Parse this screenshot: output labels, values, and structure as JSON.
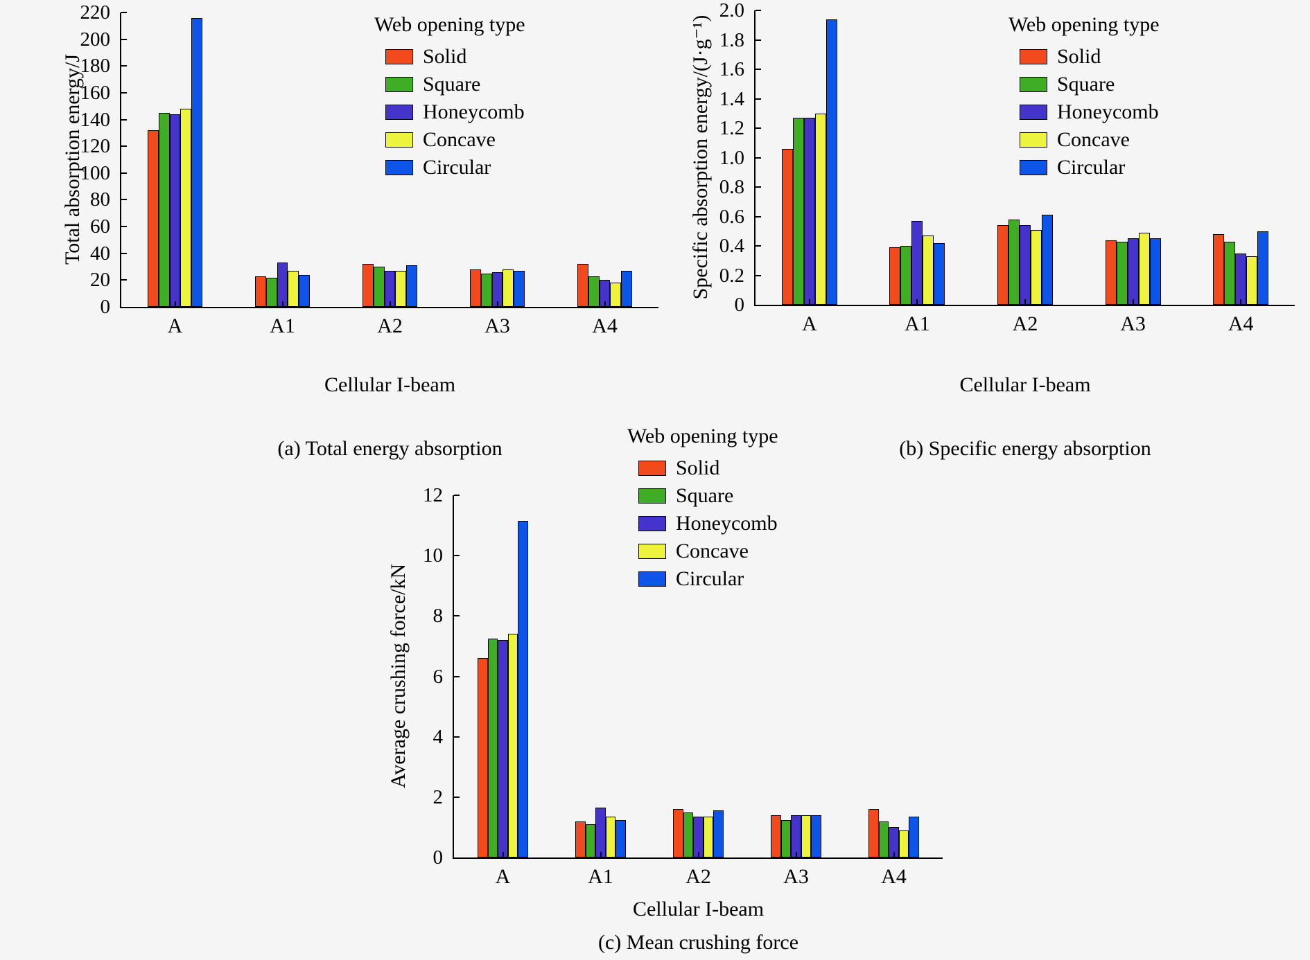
{
  "figure": {
    "background": "#f5f5f5"
  },
  "chart_data": [
    {
      "id": "chart-a",
      "type": "bar",
      "caption": "(a) Total energy absorption",
      "xlabel": "Cellular I-beam",
      "ylabel": "Total absorption energy/J",
      "legend_title": "Web opening type",
      "legend_position": "upper right",
      "grid": false,
      "categories": [
        "A",
        "A1",
        "A2",
        "A3",
        "A4"
      ],
      "ylim": [
        0,
        220
      ],
      "ytick_step": 20,
      "ytick_decimals": 0,
      "series": [
        {
          "name": "Solid",
          "color": "#f2491d",
          "values": [
            132,
            23,
            32,
            28,
            32
          ]
        },
        {
          "name": "Square",
          "color": "#3fae24",
          "values": [
            145,
            22,
            30,
            25,
            23
          ]
        },
        {
          "name": "Honeycomb",
          "color": "#4434cb",
          "values": [
            144,
            33,
            27,
            26,
            20
          ]
        },
        {
          "name": "Concave",
          "color": "#eef43d",
          "values": [
            148,
            27,
            27,
            28,
            18
          ]
        },
        {
          "name": "Circular",
          "color": "#0d55e8",
          "values": [
            216,
            24,
            31,
            27,
            27
          ]
        }
      ]
    },
    {
      "id": "chart-b",
      "type": "bar",
      "caption": "(b) Specific energy absorption",
      "xlabel": "Cellular I-beam",
      "ylabel": "Specific absorption energy/(J·g⁻¹)",
      "legend_title": "Web opening type",
      "legend_position": "upper right",
      "grid": false,
      "categories": [
        "A",
        "A1",
        "A2",
        "A3",
        "A4"
      ],
      "ylim": [
        0,
        2.0
      ],
      "ytick_step": 0.2,
      "ytick_decimals": 1,
      "series": [
        {
          "name": "Solid",
          "color": "#f2491d",
          "values": [
            1.06,
            0.39,
            0.54,
            0.44,
            0.48
          ]
        },
        {
          "name": "Square",
          "color": "#3fae24",
          "values": [
            1.27,
            0.4,
            0.58,
            0.43,
            0.43
          ]
        },
        {
          "name": "Honeycomb",
          "color": "#4434cb",
          "values": [
            1.27,
            0.57,
            0.54,
            0.45,
            0.35
          ]
        },
        {
          "name": "Concave",
          "color": "#eef43d",
          "values": [
            1.3,
            0.47,
            0.51,
            0.49,
            0.33
          ]
        },
        {
          "name": "Circular",
          "color": "#0d55e8",
          "values": [
            1.94,
            0.42,
            0.61,
            0.45,
            0.5
          ]
        }
      ]
    },
    {
      "id": "chart-c",
      "type": "bar",
      "caption": "(c) Mean crushing force",
      "xlabel": "Cellular I-beam",
      "ylabel": "Average crushing force/kN",
      "legend_title": "Web opening type",
      "legend_position": "upper right",
      "grid": false,
      "categories": [
        "A",
        "A1",
        "A2",
        "A3",
        "A4"
      ],
      "ylim": [
        0,
        12
      ],
      "ytick_step": 2,
      "ytick_decimals": 0,
      "series": [
        {
          "name": "Solid",
          "color": "#f2491d",
          "values": [
            6.6,
            1.2,
            1.6,
            1.4,
            1.6
          ]
        },
        {
          "name": "Square",
          "color": "#3fae24",
          "values": [
            7.25,
            1.1,
            1.5,
            1.25,
            1.2
          ]
        },
        {
          "name": "Honeycomb",
          "color": "#4434cb",
          "values": [
            7.2,
            1.65,
            1.35,
            1.4,
            1.0
          ]
        },
        {
          "name": "Concave",
          "color": "#eef43d",
          "values": [
            7.4,
            1.35,
            1.35,
            1.4,
            0.9
          ]
        },
        {
          "name": "Circular",
          "color": "#0d55e8",
          "values": [
            11.15,
            1.25,
            1.55,
            1.4,
            1.35
          ]
        }
      ]
    }
  ]
}
